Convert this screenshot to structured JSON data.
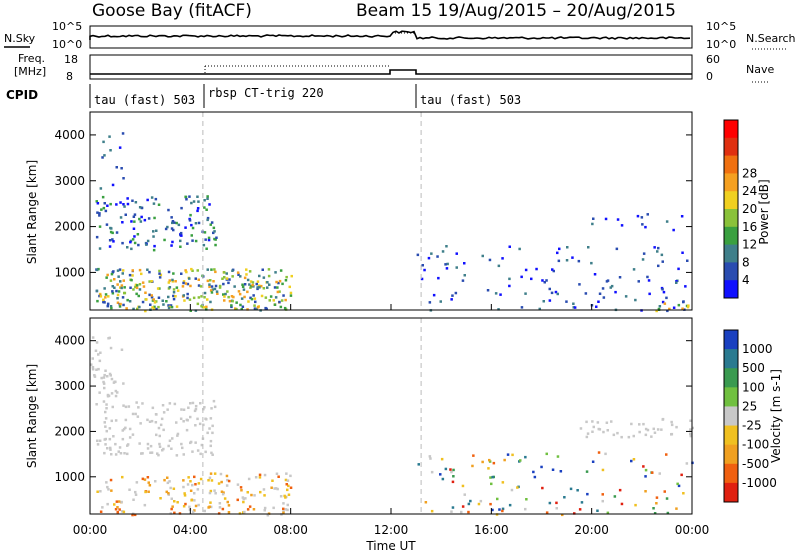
{
  "header": {
    "station": "Goose Bay (fitACF)",
    "beam_dates": "Beam 15 19/Aug/2015 – 20/Aug/2015"
  },
  "nsky_panel": {
    "left_label": "N.Sky",
    "right_label": "N.Search",
    "left_ticks": [
      "10^5",
      "10^0"
    ],
    "right_ticks": [
      "10^5",
      "10^0"
    ]
  },
  "freq_panel": {
    "left_label_1": "Freq.",
    "left_label_2": "[MHz]",
    "right_label": "Nave",
    "left_ticks": [
      "18",
      "8"
    ],
    "right_ticks": [
      "60",
      "0"
    ]
  },
  "cpid_panel": {
    "label": "CPID",
    "segments": [
      "tau (fast) 503",
      "rbsp CT-trig 220",
      "tau (fast) 503"
    ]
  },
  "chart_data": [
    {
      "type": "heatmap",
      "quantity": "Power",
      "ylabel": "Slant Range [km]",
      "ylim": [
        180,
        4500
      ],
      "yticks": [
        1000,
        2000,
        3000,
        4000
      ],
      "colorbar_label": "Power [dB]",
      "colorbar_ticks": [
        "4",
        "8",
        "12",
        "16",
        "20",
        "24",
        "28"
      ],
      "colorbar_colors": [
        "#1010ff",
        "#2a4cb0",
        "#3f7f8a",
        "#3aa040",
        "#8ac23a",
        "#f0d020",
        "#f5a020",
        "#f07010",
        "#e03010",
        "#ff0000"
      ],
      "features": [
        {
          "name": "range band",
          "t": [
            0.0,
            1.3
          ],
          "range_km": [
            2800,
            4100
          ],
          "level": "weak"
        },
        {
          "name": "range band",
          "t": [
            0.2,
            5.0
          ],
          "range_km": [
            1500,
            2700
          ],
          "level": "moderate"
        },
        {
          "name": "range band",
          "t": [
            0.2,
            8.0
          ],
          "range_km": [
            180,
            1100
          ],
          "level": "strong"
        },
        {
          "name": "range band",
          "t": [
            13.0,
            24.0
          ],
          "range_km": [
            180,
            1600
          ],
          "level": "weak"
        },
        {
          "name": "range band",
          "t": [
            19.5,
            24.0
          ],
          "range_km": [
            1900,
            2300
          ],
          "level": "weak"
        },
        {
          "name": "range band",
          "t": [
            22.5,
            24.0
          ],
          "range_km": [
            180,
            400
          ],
          "level": "strong"
        }
      ]
    },
    {
      "type": "heatmap",
      "quantity": "Velocity",
      "xlabel": "Time UT",
      "ylabel": "Slant Range [km]",
      "ylim": [
        180,
        4500
      ],
      "yticks": [
        1000,
        2000,
        3000,
        4000
      ],
      "xticks": [
        "00:00",
        "04:00",
        "08:00",
        "12:00",
        "16:00",
        "20:00",
        "00:00"
      ],
      "xlim_hours": [
        0,
        24
      ],
      "colorbar_label": "Velocity [m s-1]",
      "colorbar_ticks": [
        "1000",
        "500",
        "100",
        "25",
        "-25",
        "-100",
        "-500",
        "-1000"
      ],
      "colorbar_colors": [
        "#1a40c0",
        "#2a7a90",
        "#3a9a50",
        "#70c040",
        "#c8c8c8",
        "#f0c020",
        "#f0a020",
        "#f06010",
        "#e02010"
      ],
      "features": [
        {
          "name": "range band",
          "t": [
            0.0,
            1.3
          ],
          "range_km": [
            2800,
            4100
          ],
          "level": "ground scatter"
        },
        {
          "name": "range band",
          "t": [
            0.2,
            5.0
          ],
          "range_km": [
            1500,
            2700
          ],
          "level": "ground scatter"
        },
        {
          "name": "range band",
          "t": [
            0.2,
            8.0
          ],
          "range_km": [
            180,
            1100
          ],
          "level": "negative"
        },
        {
          "name": "range band",
          "t": [
            13.0,
            24.0
          ],
          "range_km": [
            180,
            1600
          ],
          "level": "mixed"
        },
        {
          "name": "range band",
          "t": [
            19.5,
            24.0
          ],
          "range_km": [
            1900,
            2300
          ],
          "level": "ground scatter"
        }
      ]
    }
  ]
}
